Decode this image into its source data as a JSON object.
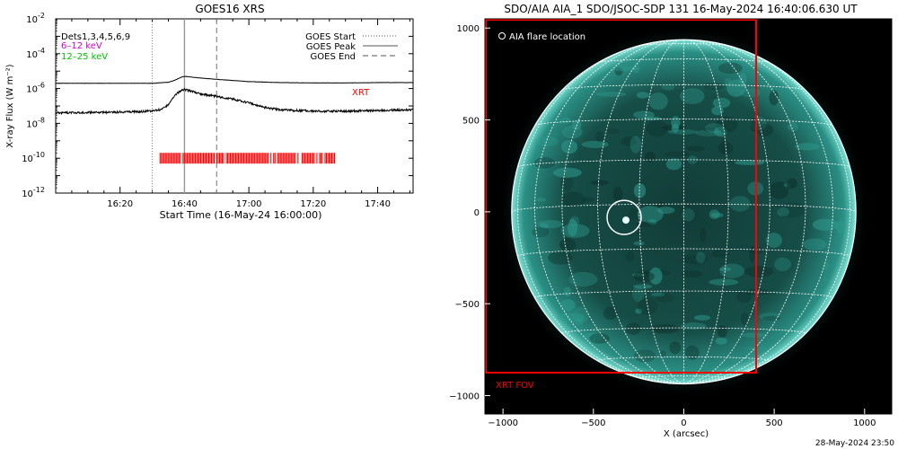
{
  "chart_data": [
    {
      "type": "line",
      "title": "GOES16 XRS",
      "xlabel": "Start Time (16-May-24 16:00:00)",
      "ylabel": "X-ray Flux (W m⁻²)",
      "xlim_minutes": [
        0,
        111
      ],
      "x_tick_minutes": [
        20,
        40,
        60,
        80,
        100
      ],
      "x_tick_labels": [
        "16:20",
        "16:40",
        "17:00",
        "17:20",
        "17:40"
      ],
      "y_scale": "log",
      "ylim": [
        1e-12,
        0.01
      ],
      "y_ticks": [
        {
          "base": "10",
          "exp": "-2"
        },
        {
          "base": "10",
          "exp": "-4"
        },
        {
          "base": "10",
          "exp": "-6"
        },
        {
          "base": "10",
          "exp": "-8"
        },
        {
          "base": "10",
          "exp": "-10"
        },
        {
          "base": "10",
          "exp": "-12"
        }
      ],
      "annotations": [
        "Dets1,3,4,5,6,9",
        "6–12 keV",
        "12–25 keV",
        "XRT"
      ],
      "legend": [
        {
          "label": "GOES Start",
          "style": "dotted"
        },
        {
          "label": "GOES Peak",
          "style": "solid"
        },
        {
          "label": "GOES End",
          "style": "dashed"
        }
      ],
      "event_lines_minutes": {
        "start": 30,
        "peak": 40,
        "end": 50
      },
      "series": [
        {
          "color": "#000000",
          "x_minutes": [
            0,
            10,
            20,
            30,
            35,
            37,
            39,
            40,
            42,
            45,
            50,
            55,
            60,
            70,
            80,
            90,
            100,
            111
          ],
          "values": [
            2e-06,
            2e-06,
            2e-06,
            2e-06,
            2.3e-06,
            3e-06,
            4.5e-06,
            5e-06,
            4.6e-06,
            4e-06,
            3.4e-06,
            2.9e-06,
            2.5e-06,
            2.2e-06,
            2.1e-06,
            2.1e-06,
            2.2e-06,
            2.2e-06
          ]
        },
        {
          "color": "#000000",
          "x_minutes": [
            0,
            10,
            20,
            30,
            33,
            35,
            37,
            39,
            40,
            42,
            45,
            50,
            55,
            60,
            65,
            70,
            80,
            90,
            100,
            111
          ],
          "values": [
            4e-08,
            4.2e-08,
            4.5e-08,
            5e-08,
            6.5e-08,
            1.2e-07,
            4e-07,
            8e-07,
            9e-07,
            7e-07,
            5e-07,
            3.5e-07,
            2.5e-07,
            1.5e-07,
            8e-08,
            6e-08,
            5e-08,
            5e-08,
            5.5e-08,
            6e-08
          ]
        }
      ],
      "xrt_coverage_minutes": [
        32,
        87
      ],
      "xrt_level": 1e-10,
      "xrt_color": "#ff0000"
    },
    {
      "type": "image",
      "title": "SDO/AIA AIA_1 SDO/JSOC-SDP 131 16-May-2024 16:40:06.630 UT",
      "xlabel": "X (arcsec)",
      "xlim": [
        -1100,
        1150
      ],
      "ylim": [
        -1100,
        1050
      ],
      "x_ticks": [
        -1000,
        -500,
        0,
        500,
        1000
      ],
      "x_tick_labels": [
        "−1000",
        "−500",
        "0",
        "500",
        "1000"
      ],
      "y_ticks": [
        1000,
        500,
        0,
        -500,
        -1000
      ],
      "y_tick_labels": [
        "1000",
        "500",
        "0",
        "−500",
        "−1000"
      ],
      "legend": [
        {
          "label": "AIA flare location",
          "marker": "circle"
        }
      ],
      "flare_location_arcsec": [
        -330,
        -45
      ],
      "solar_radius_arcsec": 952,
      "xrt_fov": {
        "label": "XRT FOV",
        "x": [
          -1110,
          400
        ],
        "y": [
          -875,
          1100
        ]
      },
      "colors": {
        "grid": "#ffffff",
        "fov": "#ff0000",
        "disk": "#1f7f76"
      }
    }
  ],
  "footer_timestamp": "28-May-2024 23:50"
}
